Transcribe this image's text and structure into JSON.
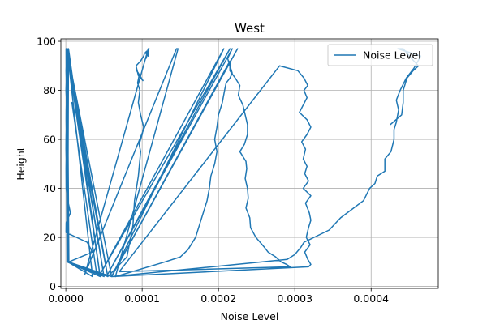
{
  "chart_data": {
    "type": "line",
    "title": "West",
    "xlabel": "Noise Level",
    "ylabel": "Height",
    "xlim": [
      -6.5e-06,
      0.000488
    ],
    "ylim": [
      -0.8,
      101
    ],
    "xticks": [
      0.0,
      0.0001,
      0.0002,
      0.0003,
      0.0004
    ],
    "xtick_labels": [
      "0.0000",
      "0.0001",
      "0.0002",
      "0.0003",
      "0.0004"
    ],
    "yticks": [
      0,
      20,
      40,
      60,
      80,
      100
    ],
    "ytick_labels": [
      "0",
      "20",
      "40",
      "60",
      "80",
      "100"
    ],
    "grid": true,
    "legend_location": "upper right",
    "line_color": "#1f77b4",
    "series": [
      {
        "name": "Noise Level",
        "x": [
          5e-07,
          8e-07,
          3e-07,
          7e-07,
          2e-07,
          9e-07,
          5e-07,
          4e-07,
          6e-07,
          3e-07,
          2e-07,
          5e-07,
          3e-07,
          4e-07,
          5e-07,
          2e-06,
          6e-06,
          5e-07,
          3e-07,
          2.8e-05,
          3.5e-05,
          4e-06,
          2e-06,
          5.5e-05,
          4e-07,
          1.6e-06,
          4.5e-05,
          1.2e-06,
          2.6e-06,
          3.5e-05,
          1.7e-06,
          3.5e-06,
          5e-05,
          2e-06,
          3.3e-06,
          6e-05,
          1.3e-06,
          3.7e-06,
          5e-05,
          9e-07,
          2.5e-06,
          4.5e-05,
          3.5e-06,
          2.5e-06,
          5.5e-05,
          2e-06,
          1.6e-06,
          4e-05,
          8e-06,
          1e-05,
          1.2e-05,
          1.4e-05,
          1.6e-05,
          1.5e-05,
          1.6e-05,
          5.5e-05,
          8e-05,
          8.5e-05,
          8.8e-05,
          9e-05,
          9.5e-05,
          9.8e-05,
          9.6e-05,
          0.0001,
          0.000102,
          9.8e-05,
          9.5e-05,
          9.7e-05,
          9.4e-05,
          9.6e-05,
          9.3e-05,
          0.000101,
          9.5e-05,
          9.2e-05,
          9.8e-05,
          0.000102,
          0.000103,
          0.000106,
          0.000105,
          0.000108,
          0.000108,
          0.000109,
          0.000105,
          0.000108,
          2.5e-05,
          0.000145,
          0.000147,
          6.5e-05,
          0.00013,
          0.00015,
          0.00016,
          0.00017,
          0.000175,
          0.00018,
          0.000185,
          0.000188,
          0.00019,
          0.000195,
          0.000198,
          0.000195,
          0.000198,
          0.0002,
          0.000205,
          0.000208,
          0.00021,
          0.000215,
          0.000218,
          0.000215,
          0.000212,
          0.000215,
          0.000218,
          5.5e-05,
          0.000215,
          4.5e-05,
          0.000207,
          6e-05,
          0.000225,
          6e-05,
          0.000215,
          0.000215,
          0.000222,
          0.000228,
          0.000226,
          0.000232,
          0.000235,
          0.000238,
          0.000238,
          0.000234,
          0.000228,
          0.000236,
          0.000237,
          0.000235,
          0.000238,
          0.000239,
          0.000236,
          0.000241,
          0.000242,
          0.000249,
          0.00026,
          0.000265,
          0.000275,
          0.000282,
          0.000289,
          0.000294,
          7e-05,
          0.00028,
          0.000304,
          0.000312,
          0.000317,
          0.000312,
          0.000316,
          0.000311,
          0.000306,
          0.000316,
          0.000321,
          0.000316,
          0.000309,
          0.000314,
          0.000311,
          0.000316,
          0.000313,
          0.000318,
          0.000311,
          0.000321,
          0.000314,
          0.000319,
          0.000321,
          0.000318,
          0.000315,
          0.00032,
          0.000313,
          0.000317,
          0.000321,
          0.000318,
          6e-05,
          0.00029,
          0.0003,
          0.000308,
          0.000312,
          0.000345,
          0.00036,
          0.00039,
          0.000398,
          0.000405,
          0.000408,
          0.000418,
          0.000418,
          0.000426,
          0.00043,
          0.00043,
          0.000433,
          0.000436,
          0.000433,
          0.000438,
          0.000446,
          0.000456,
          0.000465,
          0.000435,
          0.000442,
          0.000453,
          0.000462,
          0.000455,
          0.000447,
          0.000442,
          0.000442,
          0.00044,
          0.000425
        ],
        "y": [
          97,
          92,
          88,
          84,
          80,
          76,
          72,
          68,
          64,
          60,
          56,
          52,
          48,
          44,
          40,
          36,
          30,
          26,
          22,
          18,
          14,
          10,
          97,
          4,
          97,
          10,
          4,
          97,
          10,
          4,
          97,
          10,
          4,
          97,
          10,
          4,
          97,
          10,
          4,
          97,
          10,
          4,
          97,
          10,
          4,
          97,
          10,
          6,
          75,
          72,
          71,
          72,
          70,
          69,
          68,
          4,
          12,
          20,
          25,
          35,
          45,
          55,
          58,
          62,
          65,
          70,
          75,
          80,
          83,
          86,
          88,
          84,
          86,
          90,
          92,
          94,
          95,
          96,
          95,
          94,
          96,
          97,
          93,
          97,
          5,
          97,
          97,
          4,
          10,
          12,
          15,
          20,
          25,
          30,
          35,
          40,
          45,
          50,
          55,
          60,
          65,
          70,
          75,
          80,
          83,
          85,
          87,
          90,
          93,
          95,
          97,
          5,
          97,
          5,
          97,
          4,
          97,
          4,
          92,
          88,
          85,
          82,
          78,
          74,
          70,
          66,
          62,
          58,
          55,
          51,
          48,
          44,
          40,
          36,
          32,
          28,
          24,
          20,
          16,
          14,
          12,
          10,
          9,
          8,
          6,
          90,
          88,
          85,
          82,
          80,
          77,
          74,
          71,
          68,
          65,
          62,
          59,
          56,
          52,
          49,
          46,
          43,
          40,
          37,
          34,
          30,
          27,
          24,
          20,
          17,
          14,
          11,
          9,
          8,
          4,
          11,
          13,
          16,
          18,
          23,
          28,
          35,
          40,
          42,
          45,
          47,
          52,
          55,
          60,
          64,
          67,
          72,
          76,
          80,
          85,
          89,
          94,
          97,
          97,
          93,
          90,
          88,
          85,
          80,
          75,
          70,
          66
        ]
      }
    ]
  }
}
